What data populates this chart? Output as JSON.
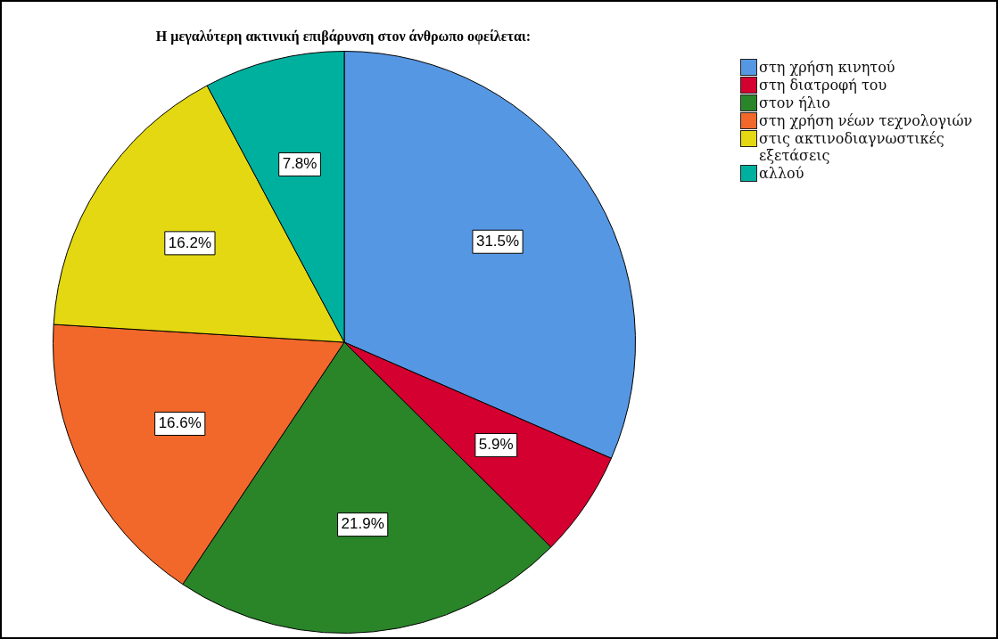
{
  "chart_data": {
    "type": "pie",
    "title": "Η μεγαλύτερη ακτινική επιβάρυνση στον άνθρωπο οφείλεται:",
    "categories": [
      "στη χρήση κινητού",
      "στη διατροφή του",
      "στον ήλιο",
      "στη χρήση νέων τεχνολογιών",
      "στις ακτινοδιαγνωστικές εξετάσεις",
      "αλλού"
    ],
    "values": [
      31.5,
      5.9,
      21.9,
      16.6,
      16.2,
      7.8
    ],
    "value_labels": [
      "31.5%",
      "5.9%",
      "21.9%",
      "16.6%",
      "16.2%",
      "7.8%"
    ],
    "colors": [
      "#5597e3",
      "#d4002f",
      "#2a8529",
      "#f2682a",
      "#e3d812",
      "#00b09f"
    ],
    "legend": "top right"
  }
}
